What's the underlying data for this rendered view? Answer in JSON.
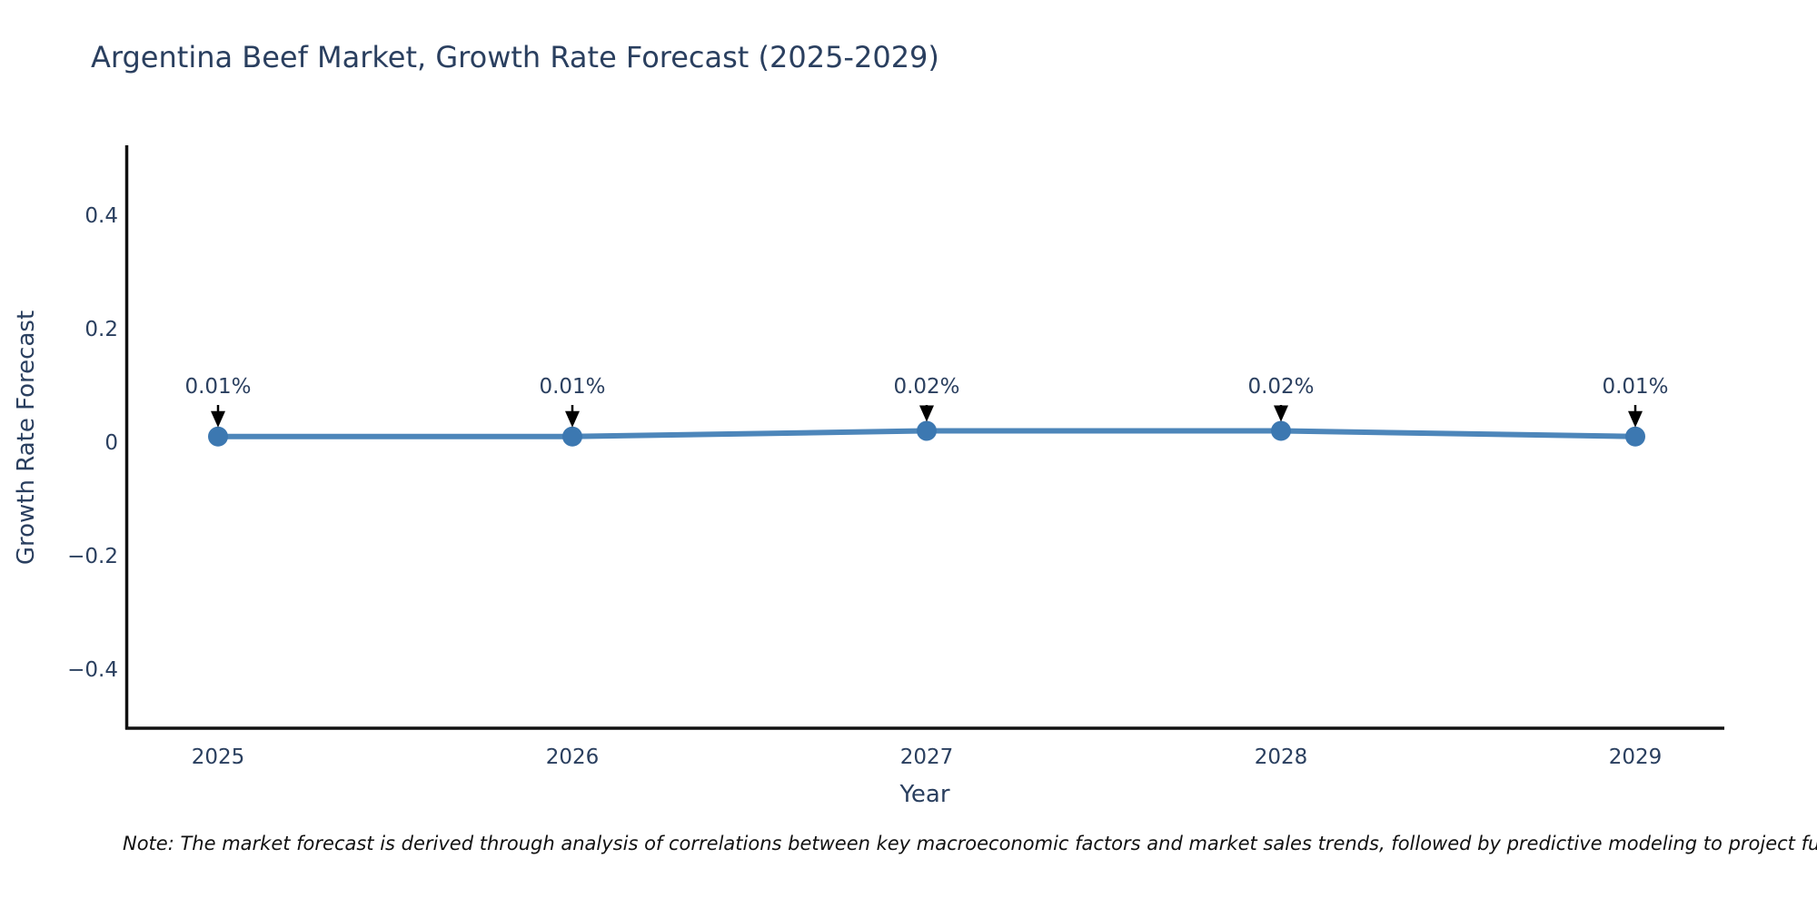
{
  "title": "Argentina Beef Market, Growth Rate Forecast (2025-2029)",
  "axes": {
    "x_title": "Year",
    "y_title": "Growth Rate Forecast"
  },
  "note": "Note: The market forecast is derived through analysis of correlations between key macroeconomic factors and market sales trends, followed by predictive modeling to project future sa",
  "colors": {
    "line": "#4d86ba",
    "marker": "#3c78b1",
    "axis_line": "#111111",
    "tick_text": "#2a3f5f",
    "annotation_text": "#2a3f5f",
    "annotation_arrow": "#000000",
    "background": "#ffffff"
  },
  "chart_data": {
    "type": "line",
    "title": "Argentina Beef Market, Growth Rate Forecast (2025-2029)",
    "xlabel": "Year",
    "ylabel": "Growth Rate Forecast",
    "x": [
      2025,
      2026,
      2027,
      2028,
      2029
    ],
    "x_tick_labels": [
      "2025",
      "2026",
      "2027",
      "2028",
      "2029"
    ],
    "series": [
      {
        "name": "Growth Rate Forecast",
        "values": [
          0.01,
          0.01,
          0.02,
          0.02,
          0.01
        ],
        "point_labels": [
          "0.01%",
          "0.01%",
          "0.02%",
          "0.02%",
          "0.01%"
        ]
      }
    ],
    "yticks": [
      0.4,
      0.2,
      0,
      -0.2,
      -0.4
    ],
    "ytick_labels": [
      "0.4",
      "0.2",
      "0",
      "−0.2",
      "−0.4"
    ],
    "ylim": [
      -0.51,
      0.52
    ],
    "grid": false,
    "legend": false,
    "annotations": "arrow-down-to-each-point"
  }
}
